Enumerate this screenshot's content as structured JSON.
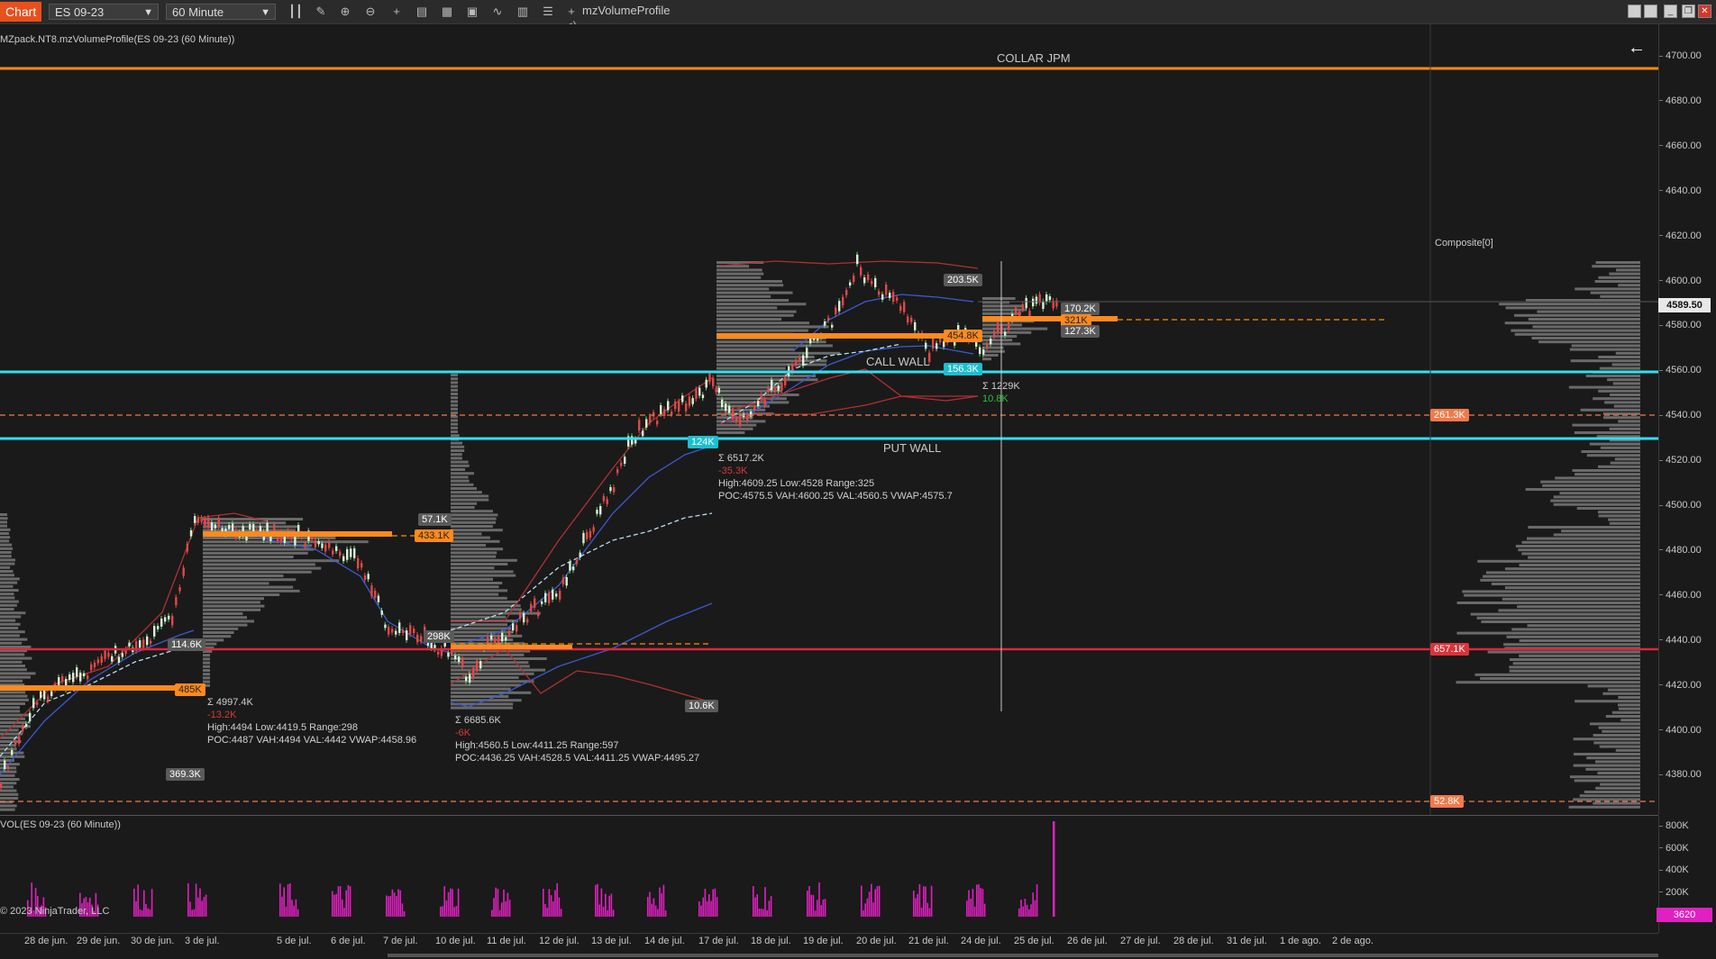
{
  "toolbar": {
    "chart_tab": "Chart",
    "instrument": "ES 09-23",
    "interval": "60 Minute",
    "indicator_name": "mzVolumeProfile",
    "misc_glyph": "+ <)"
  },
  "plot": {
    "indicator_title": "MZpack.NT8.mzVolumeProfile(ES 09-23 (60 Minute))",
    "volume_title": "VOL(ES 09-23 (60 Minute))",
    "copyright": "© 2023 NinjaTrader, LLC",
    "composite_label": "Composite[0]",
    "f_button": "F"
  },
  "levels": {
    "collar": "COLLAR JPM",
    "call_wall": "CALL WALL",
    "put_wall": "PUT WALL"
  },
  "price_axis": {
    "ticks": [
      "4700.00",
      "4680.00",
      "4660.00",
      "4640.00",
      "4620.00",
      "4600.00",
      "4580.00",
      "4560.00",
      "4540.00",
      "4520.00",
      "4500.00",
      "4480.00",
      "4460.00",
      "4440.00",
      "4420.00",
      "4400.00",
      "4380.00"
    ],
    "current_price": "4589.50"
  },
  "volume_axis": {
    "ticks": [
      "800K",
      "600K",
      "400K",
      "200K"
    ],
    "current_volume": "3620"
  },
  "time_axis": [
    "28 de jun.",
    "29 de jun.",
    "30 de jun.",
    "3 de jul.",
    "5 de jul.",
    "6 de jul.",
    "7 de jul.",
    "10 de jul.",
    "11 de jul.",
    "12 de jul.",
    "13 de jul.",
    "14 de jul.",
    "17 de jul.",
    "18 de jul.",
    "19 de jul.",
    "20 de jul.",
    "21 de jul.",
    "24 de jul.",
    "25 de jul.",
    "26 de jul.",
    "27 de jul.",
    "28 de jul.",
    "31 de jul.",
    "1 de ago.",
    "2 de ago."
  ],
  "badges": {
    "b1": "57.1K",
    "b2": "433.1K",
    "b3": "114.6K",
    "b4": "485K",
    "b5": "369.3K",
    "b6": "298K",
    "b7": "10.6K",
    "b8": "124K",
    "b9": "203.5K",
    "b10": "454.8K",
    "b11": "156.3K",
    "b12": "170.2K",
    "b13": "321K",
    "b14": "127.3K",
    "b15": "261.3K",
    "b16": "657.1K",
    "b17": "52.8K"
  },
  "sessions": {
    "s1": {
      "sum": "Σ 4997.4K",
      "delta": "-13.2K",
      "hl": "High:4494 Low:4419.5 Range:298",
      "poc": "POC:4487 VAH:4494 VAL:4442 VWAP:4458.96"
    },
    "s2": {
      "sum": "Σ 6685.6K",
      "delta": "-6K",
      "hl": "High:4560.5 Low:4411.25 Range:597",
      "poc": "POC:4436.25 VAH:4528.5 VAL:4411.25 VWAP:4495.27"
    },
    "s3": {
      "sum": "Σ 6517.2K",
      "delta": "-35.3K",
      "hl": "High:4609.25 Low:4528 Range:325",
      "poc": "POC:4575.5 VAH:4600.25 VAL:4560.5 VWAP:4575.7"
    },
    "s4": {
      "sum": "Σ 1229K",
      "delta": "10.8K"
    }
  },
  "colors": {
    "collar_line": "#ff8c00",
    "wall_line": "#2ee0f0",
    "red_line": "#e0243c",
    "volume_bars": "#e020c0",
    "profile": "#6a6a6a",
    "poc_orange": "#ff8a1c"
  }
}
